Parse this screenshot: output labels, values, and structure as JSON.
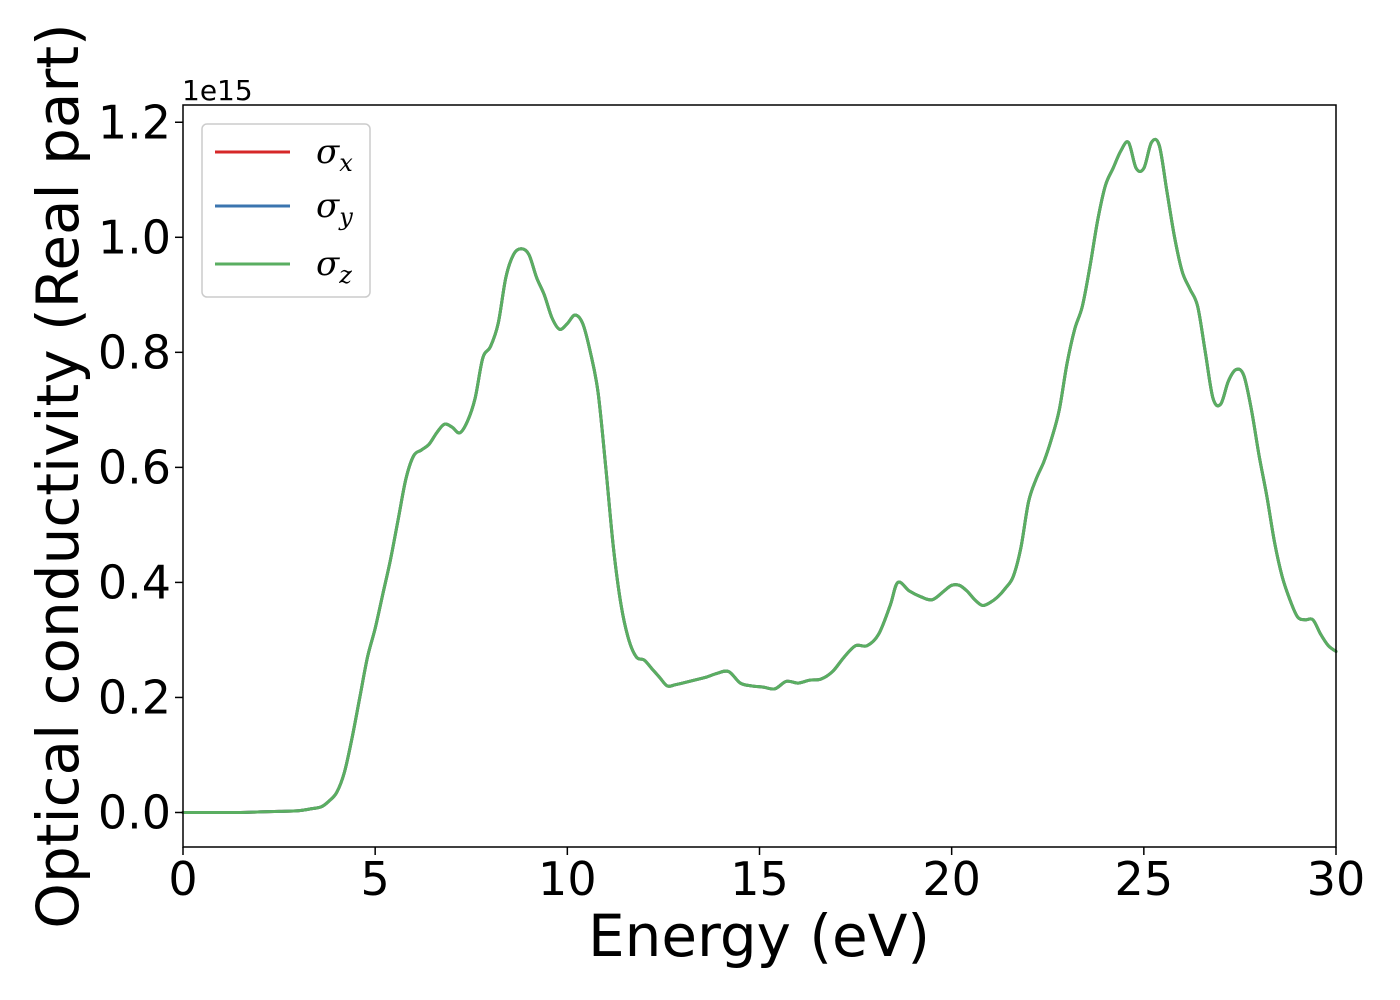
{
  "chart_data": {
    "type": "line",
    "title": "",
    "xlabel": "Energy (eV)",
    "ylabel": "Optical conductivity (Real part)",
    "y_offset_label": "1e15",
    "xlim": [
      0,
      30
    ],
    "ylim": [
      -0.06,
      1.23
    ],
    "x_ticks": [
      0,
      5,
      10,
      15,
      20,
      25,
      30
    ],
    "y_ticks": [
      0.0,
      0.2,
      0.4,
      0.6,
      0.8,
      1.0,
      1.2
    ],
    "x_tick_labels": [
      "0",
      "5",
      "10",
      "15",
      "20",
      "25",
      "30"
    ],
    "y_tick_labels": [
      "0.0",
      "0.2",
      "0.4",
      "0.6",
      "0.8",
      "1.0",
      "1.2"
    ],
    "grid": false,
    "legend_position": "top-left",
    "x": [
      0,
      0.5,
      1,
      1.5,
      2,
      2.5,
      3,
      3.3,
      3.6,
      3.8,
      4.0,
      4.2,
      4.4,
      4.6,
      4.8,
      5.0,
      5.2,
      5.4,
      5.6,
      5.8,
      6.0,
      6.2,
      6.4,
      6.6,
      6.8,
      7.0,
      7.2,
      7.4,
      7.6,
      7.8,
      8.0,
      8.2,
      8.4,
      8.6,
      8.8,
      9.0,
      9.2,
      9.4,
      9.6,
      9.8,
      10.0,
      10.2,
      10.4,
      10.6,
      10.8,
      11.0,
      11.2,
      11.4,
      11.6,
      11.8,
      12.0,
      12.2,
      12.4,
      12.6,
      12.8,
      13.0,
      13.3,
      13.6,
      13.9,
      14.2,
      14.5,
      14.8,
      15.1,
      15.4,
      15.7,
      16.0,
      16.3,
      16.6,
      16.9,
      17.2,
      17.5,
      17.8,
      18.1,
      18.4,
      18.6,
      18.9,
      19.2,
      19.5,
      19.8,
      20.0,
      20.2,
      20.4,
      20.6,
      20.8,
      21.0,
      21.2,
      21.4,
      21.6,
      21.8,
      22.0,
      22.2,
      22.4,
      22.6,
      22.8,
      23.0,
      23.2,
      23.4,
      23.6,
      23.8,
      24.0,
      24.2,
      24.4,
      24.6,
      24.8,
      25.0,
      25.2,
      25.4,
      25.6,
      25.8,
      26.0,
      26.2,
      26.4,
      26.6,
      26.8,
      27.0,
      27.2,
      27.4,
      27.6,
      27.8,
      28.0,
      28.2,
      28.4,
      28.6,
      28.8,
      29.0,
      29.2,
      29.4,
      29.6,
      29.8,
      30.0
    ],
    "series": [
      {
        "name": "σx",
        "color": "#d62728",
        "values": [
          0.0,
          0.0,
          0.0,
          0.0,
          0.001,
          0.002,
          0.003,
          0.006,
          0.01,
          0.02,
          0.035,
          0.07,
          0.13,
          0.2,
          0.27,
          0.32,
          0.38,
          0.44,
          0.51,
          0.58,
          0.62,
          0.63,
          0.64,
          0.66,
          0.675,
          0.67,
          0.66,
          0.68,
          0.72,
          0.79,
          0.81,
          0.85,
          0.93,
          0.97,
          0.98,
          0.97,
          0.93,
          0.9,
          0.86,
          0.84,
          0.85,
          0.865,
          0.85,
          0.8,
          0.73,
          0.6,
          0.46,
          0.36,
          0.3,
          0.27,
          0.265,
          0.25,
          0.235,
          0.22,
          0.222,
          0.225,
          0.23,
          0.235,
          0.242,
          0.245,
          0.225,
          0.22,
          0.218,
          0.215,
          0.228,
          0.225,
          0.23,
          0.232,
          0.245,
          0.27,
          0.29,
          0.29,
          0.31,
          0.36,
          0.4,
          0.385,
          0.375,
          0.37,
          0.385,
          0.395,
          0.395,
          0.385,
          0.37,
          0.36,
          0.365,
          0.375,
          0.39,
          0.41,
          0.46,
          0.54,
          0.58,
          0.61,
          0.65,
          0.7,
          0.78,
          0.84,
          0.88,
          0.95,
          1.03,
          1.09,
          1.12,
          1.15,
          1.165,
          1.12,
          1.12,
          1.165,
          1.16,
          1.08,
          1.0,
          0.94,
          0.91,
          0.88,
          0.8,
          0.72,
          0.71,
          0.75,
          0.77,
          0.76,
          0.7,
          0.62,
          0.55,
          0.47,
          0.41,
          0.37,
          0.34,
          0.335,
          0.335,
          0.31,
          0.29,
          0.28
        ]
      },
      {
        "name": "σy",
        "color": "#3b75af",
        "values": [
          0.0,
          0.0,
          0.0,
          0.0,
          0.001,
          0.002,
          0.003,
          0.006,
          0.01,
          0.02,
          0.035,
          0.07,
          0.13,
          0.2,
          0.27,
          0.32,
          0.38,
          0.44,
          0.51,
          0.58,
          0.62,
          0.63,
          0.64,
          0.66,
          0.675,
          0.67,
          0.66,
          0.68,
          0.72,
          0.79,
          0.81,
          0.85,
          0.93,
          0.97,
          0.98,
          0.97,
          0.93,
          0.9,
          0.86,
          0.84,
          0.85,
          0.865,
          0.85,
          0.8,
          0.73,
          0.6,
          0.46,
          0.36,
          0.3,
          0.27,
          0.265,
          0.25,
          0.235,
          0.22,
          0.222,
          0.225,
          0.23,
          0.235,
          0.242,
          0.245,
          0.225,
          0.22,
          0.218,
          0.215,
          0.228,
          0.225,
          0.23,
          0.232,
          0.245,
          0.27,
          0.29,
          0.29,
          0.31,
          0.36,
          0.4,
          0.385,
          0.375,
          0.37,
          0.385,
          0.395,
          0.395,
          0.385,
          0.37,
          0.36,
          0.365,
          0.375,
          0.39,
          0.41,
          0.46,
          0.54,
          0.58,
          0.61,
          0.65,
          0.7,
          0.78,
          0.84,
          0.88,
          0.95,
          1.03,
          1.09,
          1.12,
          1.15,
          1.165,
          1.12,
          1.12,
          1.165,
          1.16,
          1.08,
          1.0,
          0.94,
          0.91,
          0.88,
          0.8,
          0.72,
          0.71,
          0.75,
          0.77,
          0.76,
          0.7,
          0.62,
          0.55,
          0.47,
          0.41,
          0.37,
          0.34,
          0.335,
          0.335,
          0.31,
          0.29,
          0.28
        ]
      },
      {
        "name": "σz",
        "color": "#5aae61",
        "values": [
          0.0,
          0.0,
          0.0,
          0.0,
          0.001,
          0.002,
          0.003,
          0.006,
          0.01,
          0.02,
          0.035,
          0.07,
          0.13,
          0.2,
          0.27,
          0.32,
          0.38,
          0.44,
          0.51,
          0.58,
          0.62,
          0.63,
          0.64,
          0.66,
          0.675,
          0.67,
          0.66,
          0.68,
          0.72,
          0.79,
          0.81,
          0.85,
          0.93,
          0.97,
          0.98,
          0.97,
          0.93,
          0.9,
          0.86,
          0.84,
          0.85,
          0.865,
          0.85,
          0.8,
          0.73,
          0.6,
          0.46,
          0.36,
          0.3,
          0.27,
          0.265,
          0.25,
          0.235,
          0.22,
          0.222,
          0.225,
          0.23,
          0.235,
          0.242,
          0.245,
          0.225,
          0.22,
          0.218,
          0.215,
          0.228,
          0.225,
          0.23,
          0.232,
          0.245,
          0.27,
          0.29,
          0.29,
          0.31,
          0.36,
          0.4,
          0.385,
          0.375,
          0.37,
          0.385,
          0.395,
          0.395,
          0.385,
          0.37,
          0.36,
          0.365,
          0.375,
          0.39,
          0.41,
          0.46,
          0.54,
          0.58,
          0.61,
          0.65,
          0.7,
          0.78,
          0.84,
          0.88,
          0.95,
          1.03,
          1.09,
          1.12,
          1.15,
          1.165,
          1.12,
          1.12,
          1.165,
          1.16,
          1.08,
          1.0,
          0.94,
          0.91,
          0.88,
          0.8,
          0.72,
          0.71,
          0.75,
          0.77,
          0.76,
          0.7,
          0.62,
          0.55,
          0.47,
          0.41,
          0.37,
          0.34,
          0.335,
          0.335,
          0.31,
          0.29,
          0.28
        ]
      }
    ]
  }
}
